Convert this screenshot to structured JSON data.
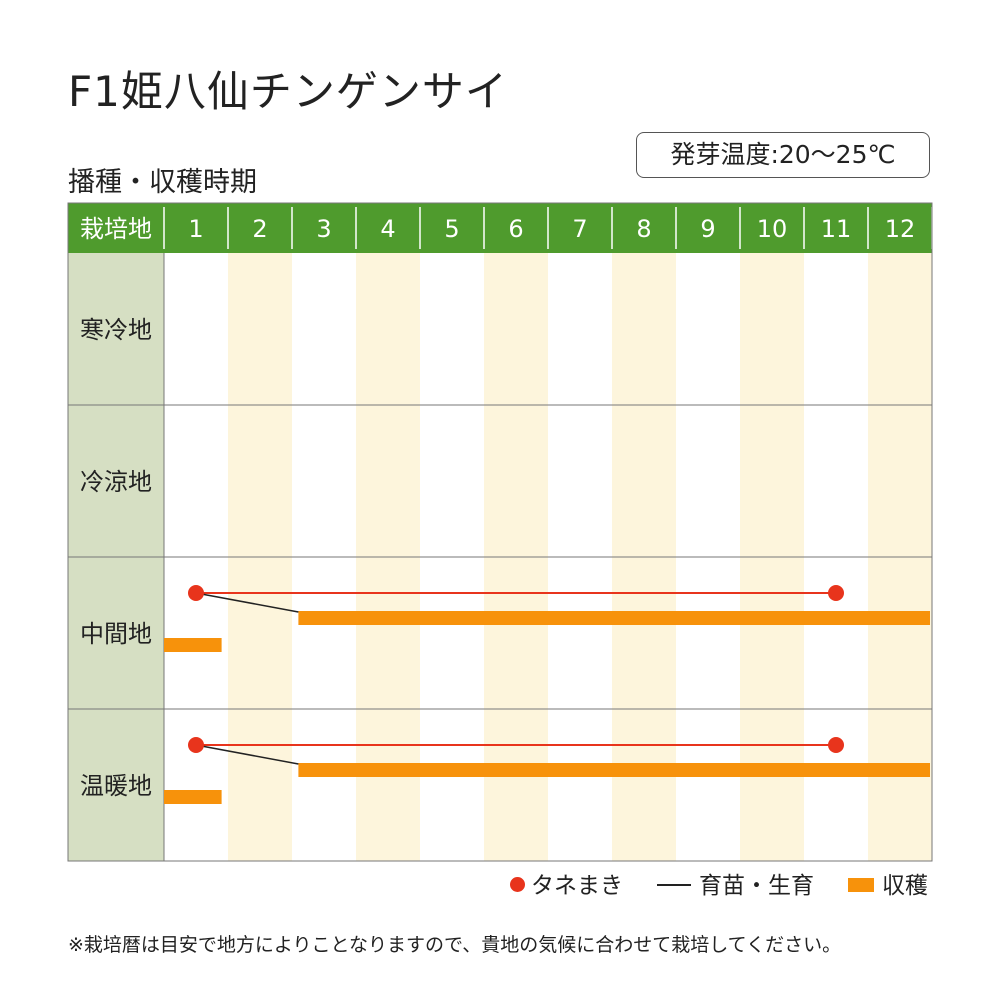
{
  "header": {
    "title": "F1姫八仙チンゲンサイ",
    "subtitle": "播種・収穫時期",
    "temperature": "発芽温度:20～25℃"
  },
  "chart_data": {
    "type": "gantt",
    "corner_label": "栽培地",
    "months": [
      "1",
      "2",
      "3",
      "4",
      "5",
      "6",
      "7",
      "8",
      "9",
      "10",
      "11",
      "12"
    ],
    "regions": [
      {
        "name": "寒冷地",
        "sowing": [],
        "growing_link": null,
        "harvest": []
      },
      {
        "name": "冷涼地",
        "sowing": [],
        "growing_link": null,
        "harvest": []
      },
      {
        "name": "中間地",
        "sowing": [
          1.5,
          11.5
        ],
        "growing_link": {
          "from": 1.5,
          "to": 3.1
        },
        "harvest": [
          [
            1.0,
            1.9
          ],
          [
            3.1,
            13.0
          ]
        ]
      },
      {
        "name": "温暖地",
        "sowing": [
          1.5,
          11.5
        ],
        "growing_link": {
          "from": 1.5,
          "to": 3.1
        },
        "harvest": [
          [
            1.0,
            1.9
          ],
          [
            3.1,
            13.0
          ]
        ]
      }
    ],
    "colors": {
      "header_bg": "#4f9b2d",
      "row_label_bg": "#d6dfc3",
      "stripe": "#fdf5dc",
      "sowing": "#e8341c",
      "growing": "#222222",
      "harvest": "#f7920b",
      "grid": "#777777"
    }
  },
  "legend": {
    "sowing": "タネまき",
    "growing": "育苗・生育",
    "harvest": "収穫"
  },
  "footnote": "※栽培暦は目安で地方によりことなりますので、貴地の気候に合わせて栽培してください。"
}
